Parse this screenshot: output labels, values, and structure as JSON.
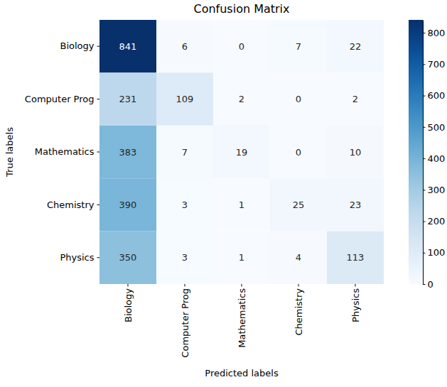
{
  "chart_data": {
    "type": "heatmap",
    "title": "Confusion Matrix",
    "x_label": "Predicted labels",
    "y_label": "True labels",
    "categories": [
      "Biology",
      "Computer Prog",
      "Mathematics",
      "Chemistry",
      "Physics"
    ],
    "y_categories": [
      "Biology",
      "Computer Prog",
      "Mathematics",
      "Chemistry",
      "Physics"
    ],
    "values": [
      [
        841,
        6,
        0,
        7,
        22
      ],
      [
        231,
        109,
        2,
        0,
        2
      ],
      [
        383,
        7,
        19,
        0,
        10
      ],
      [
        390,
        3,
        1,
        25,
        23
      ],
      [
        350,
        3,
        1,
        4,
        113
      ]
    ],
    "colorbar": {
      "range": [
        0,
        841
      ],
      "ticks": [
        0,
        100,
        200,
        300,
        400,
        500,
        600,
        700,
        800
      ]
    },
    "data_labels": true
  }
}
